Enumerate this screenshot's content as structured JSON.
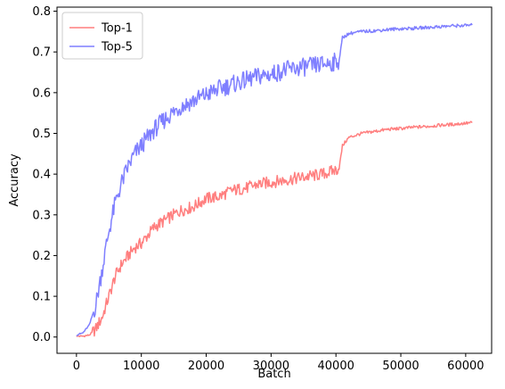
{
  "chart_data": {
    "type": "line",
    "title": "",
    "xlabel": "Batch",
    "ylabel": "Accuracy",
    "xlim": [
      -3000,
      64000
    ],
    "ylim": [
      -0.04,
      0.81
    ],
    "x_ticks": [
      0,
      10000,
      20000,
      30000,
      40000,
      50000,
      60000
    ],
    "x_tick_labels": [
      "0",
      "10000",
      "20000",
      "30000",
      "40000",
      "50000",
      "60000"
    ],
    "y_ticks": [
      0.0,
      0.1,
      0.2,
      0.3,
      0.4,
      0.5,
      0.6,
      0.7,
      0.8
    ],
    "y_tick_labels": [
      "0.0",
      "0.1",
      "0.2",
      "0.3",
      "0.4",
      "0.5",
      "0.6",
      "0.7",
      "0.8"
    ],
    "grid": false,
    "legend": "top-left",
    "series": [
      {
        "name": "Top-1",
        "color": "#ff7f7f",
        "x": [
          0,
          1000,
          2000,
          3000,
          4000,
          5000,
          6000,
          7000,
          8000,
          9000,
          10000,
          12000,
          14000,
          16000,
          18000,
          20000,
          22000,
          24000,
          26000,
          28000,
          30000,
          32000,
          34000,
          36000,
          38000,
          40000,
          40500,
          41000,
          42000,
          43000,
          44000,
          46000,
          48000,
          50000,
          52000,
          54000,
          56000,
          58000,
          60000,
          61000
        ],
        "y": [
          0.002,
          0.002,
          0.005,
          0.02,
          0.05,
          0.1,
          0.15,
          0.18,
          0.2,
          0.22,
          0.23,
          0.27,
          0.29,
          0.31,
          0.32,
          0.34,
          0.345,
          0.36,
          0.365,
          0.375,
          0.38,
          0.385,
          0.39,
          0.395,
          0.4,
          0.41,
          0.415,
          0.47,
          0.49,
          0.495,
          0.5,
          0.505,
          0.51,
          0.512,
          0.515,
          0.517,
          0.52,
          0.522,
          0.525,
          0.526
        ]
      },
      {
        "name": "Top-5",
        "color": "#7f7fff",
        "x": [
          0,
          1000,
          2000,
          3000,
          4000,
          5000,
          6000,
          7000,
          8000,
          9000,
          10000,
          12000,
          14000,
          16000,
          18000,
          20000,
          22000,
          24000,
          26000,
          28000,
          30000,
          32000,
          34000,
          36000,
          38000,
          40000,
          40500,
          41000,
          42000,
          43000,
          44000,
          46000,
          48000,
          50000,
          52000,
          54000,
          56000,
          58000,
          60000,
          61000
        ],
        "y": [
          0.005,
          0.01,
          0.03,
          0.08,
          0.17,
          0.26,
          0.33,
          0.38,
          0.42,
          0.45,
          0.47,
          0.51,
          0.54,
          0.565,
          0.58,
          0.595,
          0.61,
          0.62,
          0.63,
          0.64,
          0.645,
          0.655,
          0.66,
          0.665,
          0.67,
          0.675,
          0.68,
          0.735,
          0.745,
          0.748,
          0.75,
          0.752,
          0.755,
          0.757,
          0.758,
          0.76,
          0.762,
          0.764,
          0.765,
          0.766
        ]
      }
    ]
  }
}
